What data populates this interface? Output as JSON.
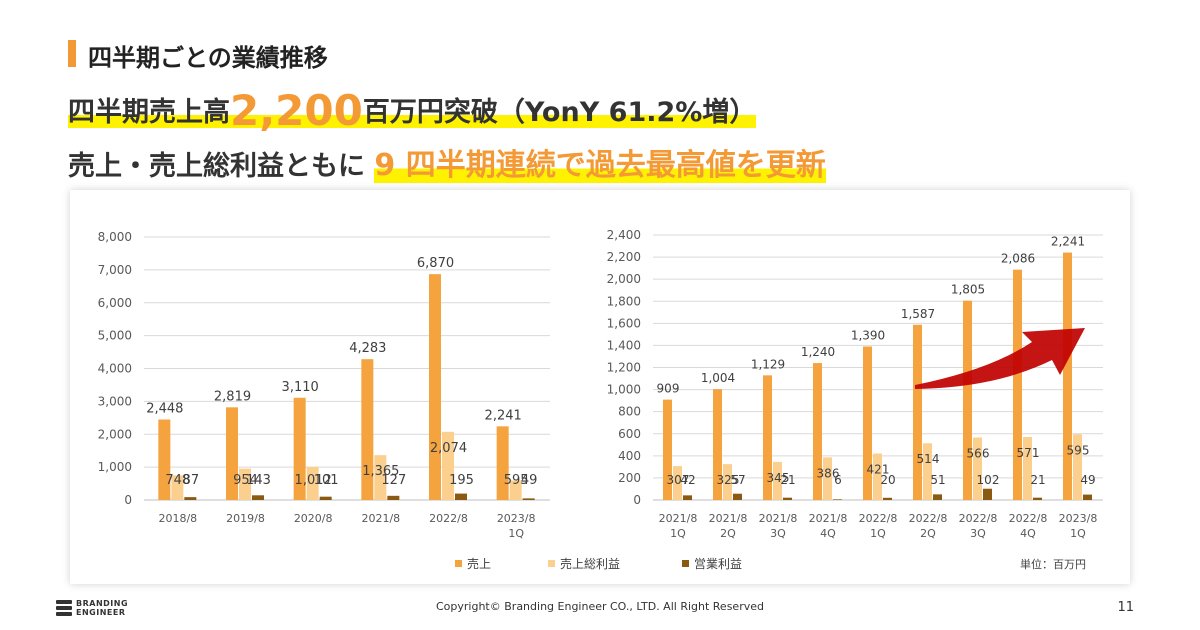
{
  "section_title": "四半期ごとの業績推移",
  "headline1": {
    "prefix": "四半期売上高",
    "amount": "2,200",
    "suffix": "百万円突破（YonY 61.2%増）"
  },
  "headline2": {
    "prefix": "売上・売上総利益ともに",
    "number": "9",
    "suffix": "四半期連続で過去最高値を更新"
  },
  "unit_note": "単位：百万円",
  "copyright": "Copyright© Branding Engineer CO., LTD. All Right Reserved",
  "page_number": "11",
  "logo": {
    "line1": "BRANDING",
    "line2": "ENGINEER"
  },
  "colors": {
    "sales": "#f5a33f",
    "gross": "#fbd08f",
    "op": "#8a5a12",
    "accent": "#f39a36",
    "arrow": "#c00000"
  },
  "chart_data": [
    {
      "type": "bar",
      "title": "",
      "categories": [
        [
          "2018/8"
        ],
        [
          "2019/8"
        ],
        [
          "2020/8"
        ],
        [
          "2021/8"
        ],
        [
          "2022/8"
        ],
        [
          "2023/8",
          "1Q"
        ]
      ],
      "ylim": [
        0,
        8000
      ],
      "ticks": [
        0,
        1000,
        2000,
        3000,
        4000,
        5000,
        6000,
        7000,
        8000
      ],
      "series": [
        {
          "name": "売上",
          "values": [
            2448,
            2819,
            3110,
            4283,
            6870,
            2241
          ]
        },
        {
          "name": "売上総利益",
          "values": [
            748,
            954,
            1012,
            1365,
            2074,
            595
          ]
        },
        {
          "name": "営業利益",
          "values": [
            87,
            143,
            101,
            127,
            195,
            49
          ]
        }
      ],
      "grid": true
    },
    {
      "type": "bar",
      "title": "",
      "categories": [
        [
          "2021/8",
          "1Q"
        ],
        [
          "2021/8",
          "2Q"
        ],
        [
          "2021/8",
          "3Q"
        ],
        [
          "2021/8",
          "4Q"
        ],
        [
          "2022/8",
          "1Q"
        ],
        [
          "2022/8",
          "2Q"
        ],
        [
          "2022/8",
          "3Q"
        ],
        [
          "2022/8",
          "4Q"
        ],
        [
          "2023/8",
          "1Q"
        ]
      ],
      "ylim": [
        0,
        2400
      ],
      "ticks": [
        0,
        200,
        400,
        600,
        800,
        1000,
        1200,
        1400,
        1600,
        1800,
        2000,
        2200,
        2400
      ],
      "series": [
        {
          "name": "売上",
          "values": [
            909,
            1004,
            1129,
            1240,
            1390,
            1587,
            1805,
            2086,
            2241
          ]
        },
        {
          "name": "売上総利益",
          "values": [
            307,
            325,
            345,
            386,
            421,
            514,
            566,
            571,
            595
          ]
        },
        {
          "name": "営業利益",
          "values": [
            42,
            57,
            21,
            6,
            20,
            51,
            102,
            21,
            49
          ]
        }
      ],
      "grid": true
    }
  ]
}
